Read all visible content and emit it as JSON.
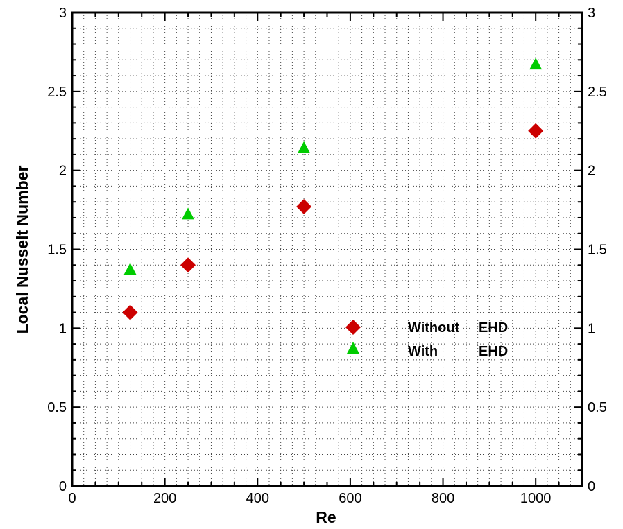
{
  "chart_data": {
    "type": "scatter",
    "xlabel": "Re",
    "ylabel": "Local Nusselt Number",
    "xlim": [
      0,
      1100
    ],
    "ylim": [
      0,
      3
    ],
    "x_ticks": [
      "0",
      "200",
      "400",
      "600",
      "800",
      "1000"
    ],
    "y_ticks": [
      "0",
      "0.5",
      "1",
      "1.5",
      "2",
      "2.5",
      "3"
    ],
    "grid": true,
    "legend_position": "center-right",
    "series": [
      {
        "name_parts": [
          "Without",
          "EHD"
        ],
        "marker": "diamond",
        "color": "#cc0000",
        "points": [
          {
            "x": 125,
            "y": 1.1
          },
          {
            "x": 250,
            "y": 1.4
          },
          {
            "x": 500,
            "y": 1.77
          },
          {
            "x": 1000,
            "y": 2.25
          }
        ]
      },
      {
        "name_parts": [
          "With",
          "EHD"
        ],
        "marker": "triangle",
        "color": "#00cc00",
        "points": [
          {
            "x": 125,
            "y": 1.37
          },
          {
            "x": 250,
            "y": 1.72
          },
          {
            "x": 500,
            "y": 2.14
          },
          {
            "x": 1000,
            "y": 2.67
          }
        ]
      }
    ]
  }
}
